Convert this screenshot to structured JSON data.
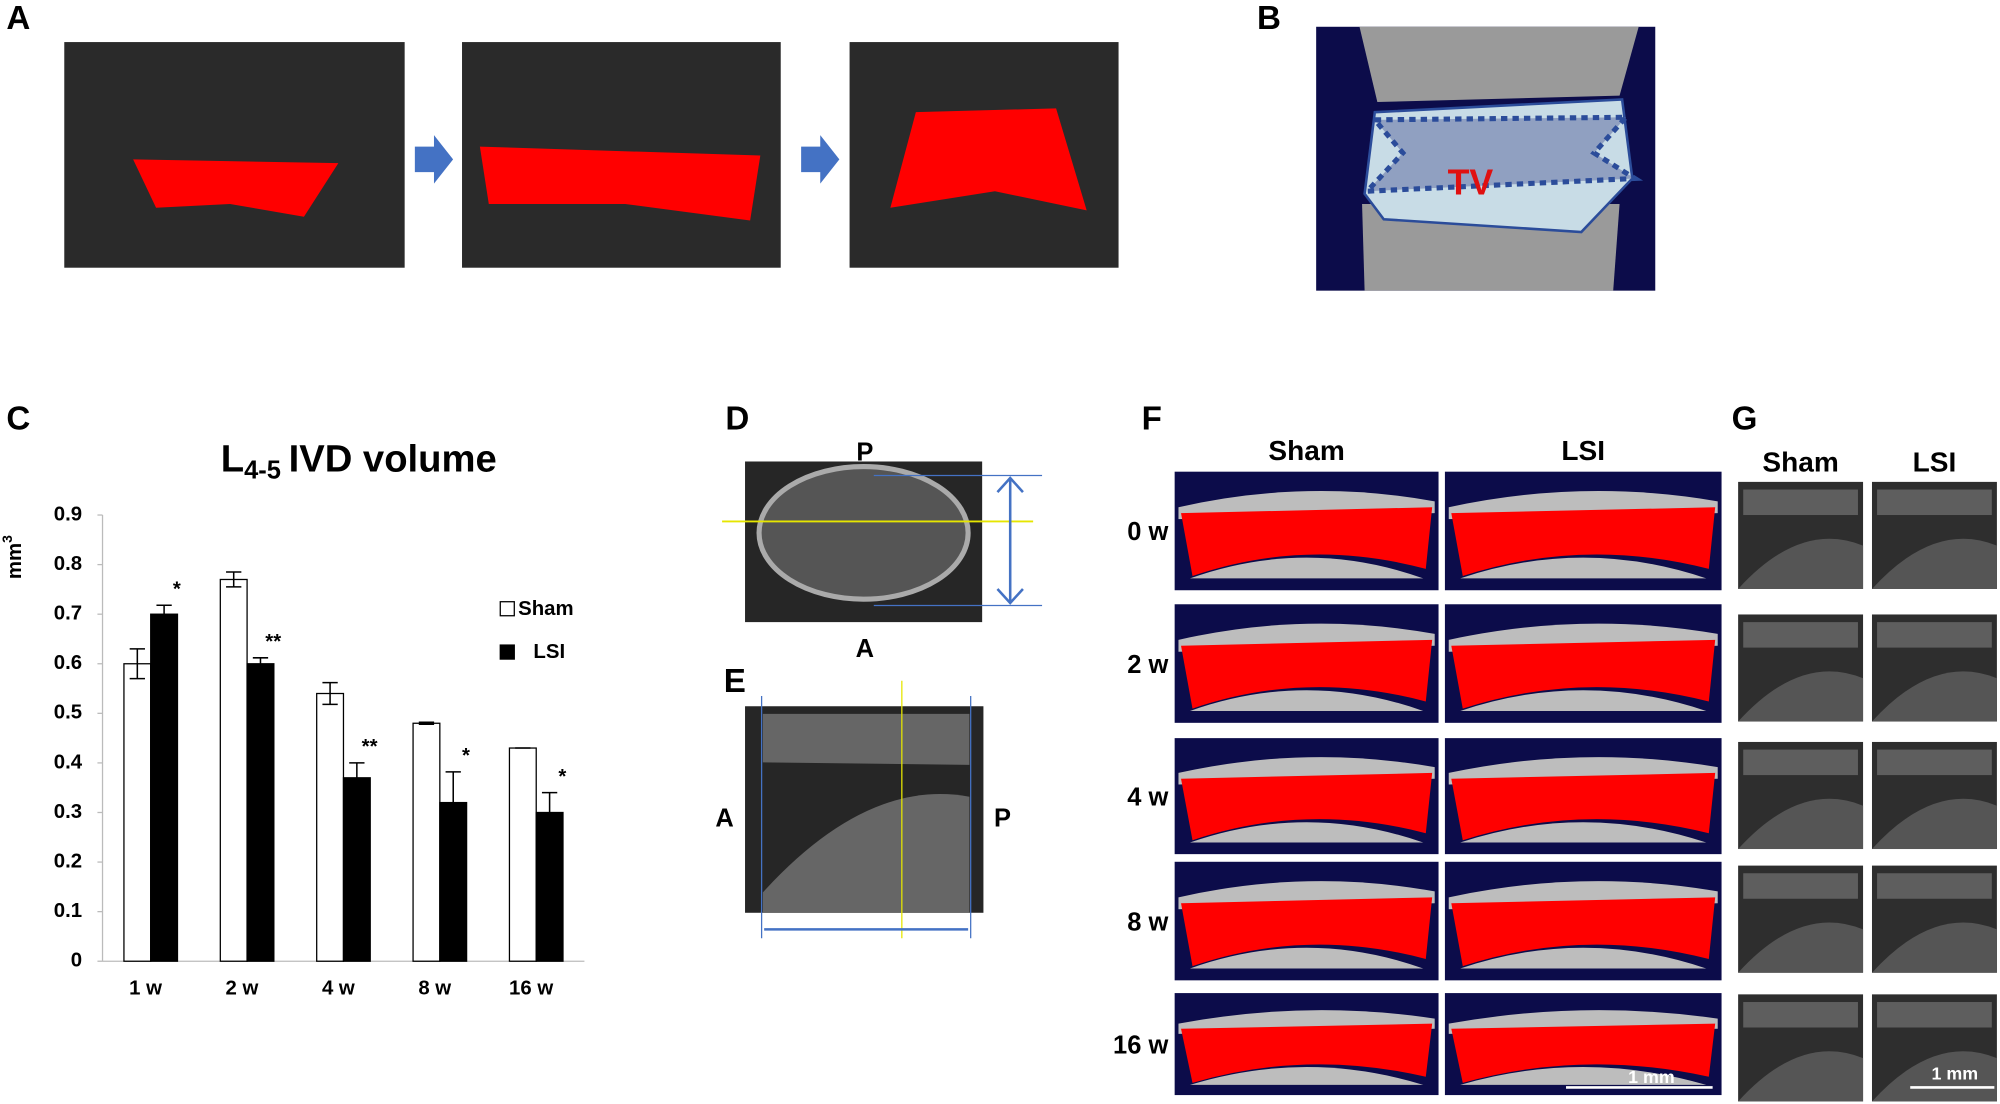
{
  "panel_labels": [
    "A",
    "B",
    "C",
    "D",
    "E",
    "F",
    "G"
  ],
  "panel_b": {
    "label": "TV"
  },
  "panel_d": {
    "top": "P",
    "bottom": "A"
  },
  "panel_e": {
    "left": "A",
    "right": "P"
  },
  "panel_f": {
    "columns": [
      "Sham",
      "LSI"
    ],
    "rows": [
      "0 w",
      "2 w",
      "4 w",
      "8 w",
      "16 w"
    ],
    "scale_bar": "1 mm"
  },
  "panel_g": {
    "columns": [
      "Sham",
      "LSI"
    ],
    "scale_bar": "1 mm"
  },
  "chart_data": {
    "type": "bar",
    "title": {
      "base": "L",
      "subscript": "4-5",
      "text": "IVD volume"
    },
    "ylabel": {
      "base": "mm",
      "superscript": "3"
    },
    "categories": [
      "1 w",
      "2 w",
      "4 w",
      "8 w",
      "16 w"
    ],
    "series": [
      {
        "name": "Sham",
        "color": "#ffffff",
        "edgecolor": "#000000",
        "values": [
          0.6,
          0.77,
          0.54,
          0.48,
          0.43
        ],
        "errors": [
          0.03,
          0.015,
          0.022,
          0.002,
          0
        ]
      },
      {
        "name": "LSI",
        "color": "#000000",
        "edgecolor": "#000000",
        "values": [
          0.7,
          0.6,
          0.37,
          0.32,
          0.3
        ],
        "errors": [
          0.018,
          0.012,
          0.03,
          0.062,
          0.04
        ],
        "significance": [
          "*",
          "**",
          "**",
          "*",
          "*"
        ]
      }
    ],
    "ylim": [
      0,
      0.9
    ],
    "yticks": [
      0,
      0.1,
      0.2,
      0.3,
      0.4,
      0.5,
      0.6,
      0.7,
      0.8,
      0.9
    ],
    "grid": false,
    "legend": "right"
  }
}
